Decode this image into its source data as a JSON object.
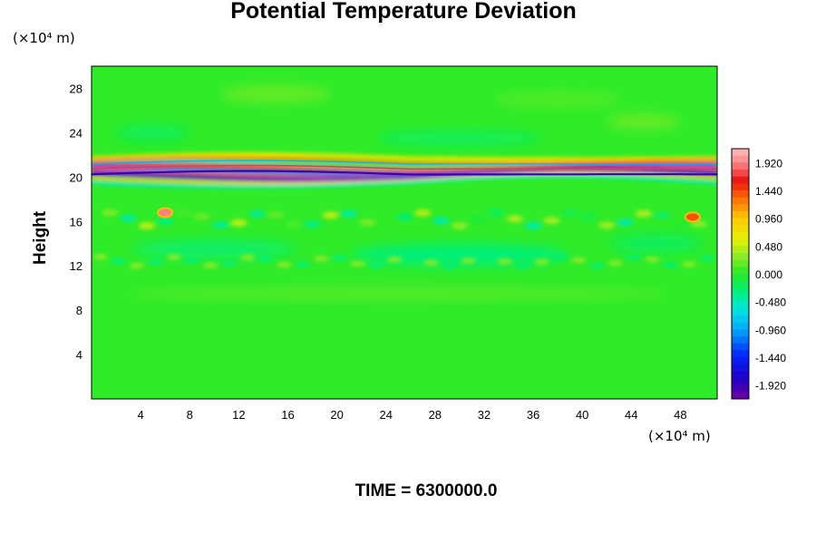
{
  "chart_data": {
    "type": "heatmap",
    "title": "Potential Temperature Deviation",
    "xlabel": "",
    "ylabel": "Height",
    "x_unit": "(×10⁴ m)",
    "y_unit": "(×10⁴ m)",
    "caption": "TIME = 6300000.0",
    "xlim": [
      0,
      51
    ],
    "ylim": [
      0,
      30
    ],
    "x_ticks": [
      4,
      8,
      12,
      16,
      20,
      24,
      28,
      32,
      36,
      40,
      44,
      48
    ],
    "y_ticks": [
      4,
      8,
      12,
      16,
      20,
      24,
      28
    ],
    "colorbar": {
      "min": -2.16,
      "max": 2.16,
      "ticks": [
        "1.920",
        "1.440",
        "0.960",
        "0.480",
        "0.000",
        "-0.480",
        "-0.960",
        "-1.440",
        "-1.920"
      ],
      "colormap": "rainbow (violet-blue-cyan-green-yellow-red-pink)"
    },
    "features": [
      {
        "name": "strong-deviation-band",
        "height_range": [
          19.3,
          21.8
        ],
        "value_range": [
          -1.9,
          1.9
        ]
      },
      {
        "name": "weak-deviation-band",
        "height_range": [
          15,
          17
        ],
        "value_range": [
          -0.5,
          0.5
        ]
      },
      {
        "name": "warm-anomaly",
        "x": 6,
        "y": 16.8,
        "value": 1.9
      },
      {
        "name": "warm-anomaly",
        "x": 49,
        "y": 16.4,
        "value": 1.4
      }
    ]
  }
}
